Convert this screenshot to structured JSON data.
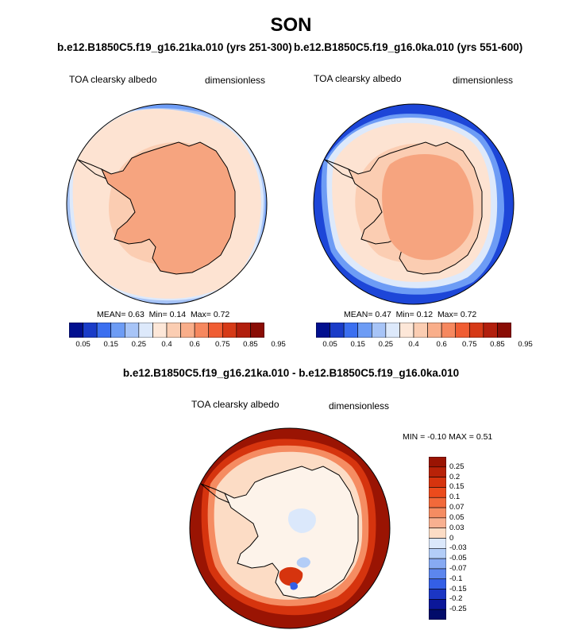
{
  "season": "SON",
  "panels": [
    {
      "case_title": "b.e12.B1850C5.f19_g16.21ka.010 (yrs 251-300)",
      "variable": "TOA clearsky albedo",
      "units": "dimensionless",
      "stats": {
        "mean_label": "MEAN=",
        "mean": "0.63",
        "min_label": "Min=",
        "min": "0.14",
        "max_label": "Max=",
        "max": "0.72"
      }
    },
    {
      "case_title": "b.e12.B1850C5.f19_g16.0ka.010 (yrs 551-600)",
      "variable": "TOA clearsky albedo",
      "units": "dimensionless",
      "stats": {
        "mean_label": "MEAN=",
        "mean": "0.47",
        "min_label": "Min=",
        "min": "0.12",
        "max_label": "Max=",
        "max": "0.72"
      }
    }
  ],
  "colorbar": {
    "tick_labels": [
      "0.05",
      "0.15",
      "0.25",
      "0.4",
      "0.6",
      "0.75",
      "0.85",
      "0.95"
    ],
    "colors": [
      "#02108f",
      "#1a3cc8",
      "#3b6ff0",
      "#6d9cf5",
      "#a7c4f7",
      "#dde9fb",
      "#fde7d8",
      "#fbcdb2",
      "#f9ae8a",
      "#f6885f",
      "#f05d33",
      "#d63a17",
      "#b21f0d",
      "#8a0d05"
    ]
  },
  "difference": {
    "title": "b.e12.B1850C5.f19_g16.21ka.010 - b.e12.B1850C5.f19_g16.0ka.010",
    "variable": "TOA clearsky albedo",
    "units": "dimensionless",
    "stats": {
      "min_label": "MIN =",
      "min": "-0.10",
      "max_label": "MAX =",
      "max": "0.51"
    },
    "colorbar": {
      "tick_labels": [
        "0.25",
        "0.2",
        "0.15",
        "0.1",
        "0.07",
        "0.05",
        "0.03",
        "0",
        "-0.03",
        "-0.05",
        "-0.07",
        "-0.1",
        "-0.15",
        "-0.2",
        "-0.25"
      ],
      "colors": [
        "#9a1403",
        "#b82208",
        "#d6340e",
        "#ec4b1c",
        "#f2693a",
        "#f58c62",
        "#f8b090",
        "#fcdcc5",
        "#dbe8fb",
        "#b3cdf7",
        "#87aaf3",
        "#5c86ee",
        "#345fe6",
        "#1b36c4",
        "#0b1799",
        "#020c6a"
      ]
    }
  },
  "map_colors": {
    "land": "#f6a47f",
    "near_coast": "#fbcdb2",
    "sea_ice": "#fde3d2",
    "open_ocean": "#1d46d8",
    "ocean_mid": "#6d9cf5",
    "ocean_pale": "#a7c4f7",
    "ice_edge": "#dde9fb",
    "diff_ocean": "#9a1403",
    "diff_mid": "#d6340e",
    "diff_light": "#f58c62",
    "diff_pale": "#fcdcc5",
    "diff_land": "#fdf3ea",
    "diff_blue": "#b3cdf7"
  }
}
